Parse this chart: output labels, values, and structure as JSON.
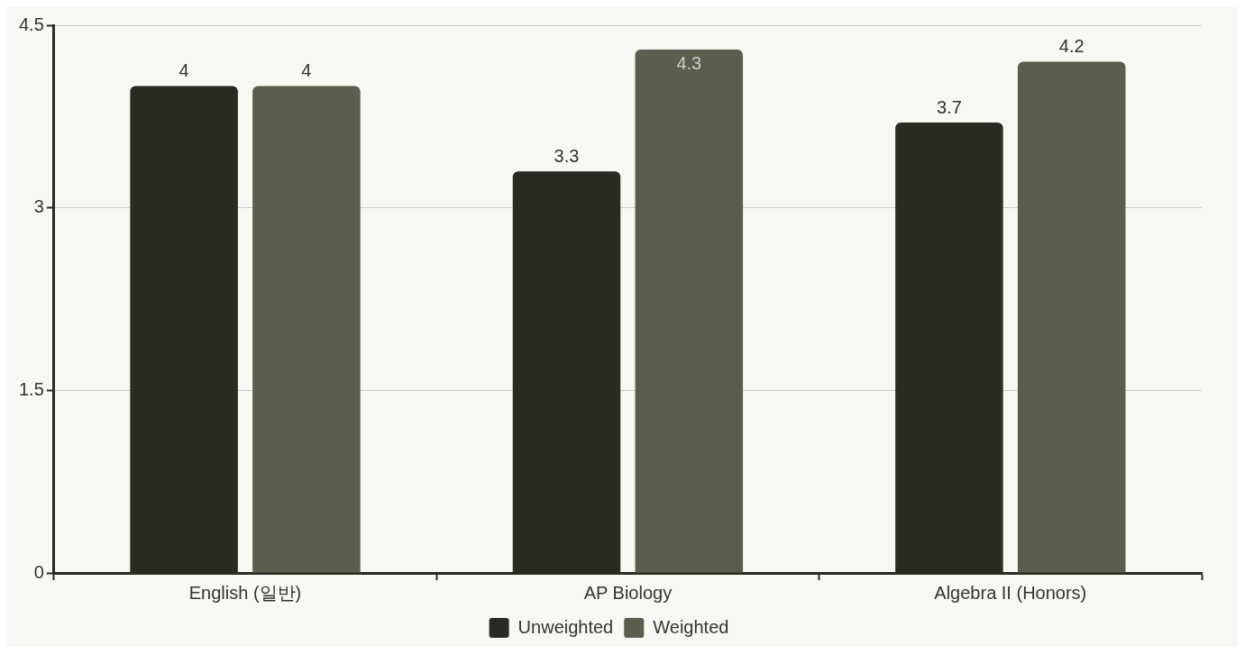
{
  "chart_data": {
    "type": "bar",
    "categories": [
      "English (일반)",
      "AP Biology",
      "Algebra II (Honors)"
    ],
    "series": [
      {
        "name": "Unweighted",
        "color": "#2a2a22",
        "values": [
          4,
          3.3,
          3.7
        ]
      },
      {
        "name": "Weighted",
        "color": "#5c5d4d",
        "values": [
          4,
          4.3,
          4.2
        ]
      }
    ],
    "ylim": [
      0,
      4.5
    ],
    "yticks": [
      0,
      1.5,
      3,
      4.5
    ],
    "grid": "y",
    "legend": "bottom",
    "data_labels": true
  }
}
